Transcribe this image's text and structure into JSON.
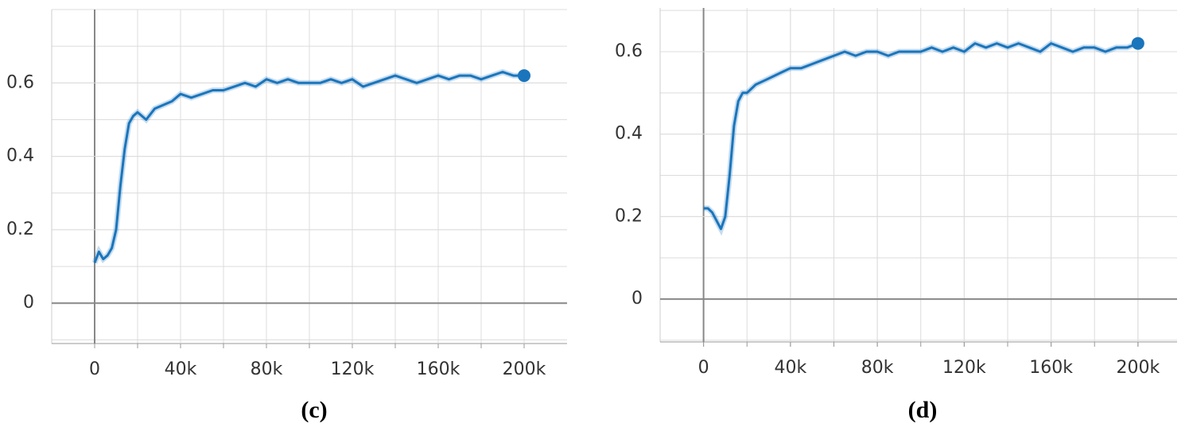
{
  "chart_data": [
    {
      "type": "line",
      "title": "(c)",
      "x": [
        0,
        2000,
        4000,
        6000,
        8000,
        10000,
        12000,
        14000,
        16000,
        18000,
        20000,
        24000,
        28000,
        32000,
        36000,
        40000,
        45000,
        50000,
        55000,
        60000,
        65000,
        70000,
        75000,
        80000,
        85000,
        90000,
        95000,
        100000,
        105000,
        110000,
        115000,
        120000,
        125000,
        130000,
        135000,
        140000,
        145000,
        150000,
        155000,
        160000,
        165000,
        170000,
        175000,
        180000,
        185000,
        190000,
        195000,
        200000
      ],
      "series": [
        {
          "color": "#1a75bc",
          "values": [
            0.11,
            0.14,
            0.12,
            0.13,
            0.15,
            0.2,
            0.32,
            0.42,
            0.49,
            0.51,
            0.52,
            0.5,
            0.53,
            0.54,
            0.55,
            0.57,
            0.56,
            0.57,
            0.58,
            0.58,
            0.59,
            0.6,
            0.59,
            0.61,
            0.6,
            0.61,
            0.6,
            0.6,
            0.6,
            0.61,
            0.6,
            0.61,
            0.59,
            0.6,
            0.61,
            0.62,
            0.61,
            0.6,
            0.61,
            0.62,
            0.61,
            0.62,
            0.62,
            0.61,
            0.62,
            0.63,
            0.62,
            0.62
          ]
        }
      ],
      "xlim": [
        -20000,
        220000
      ],
      "ylim": [
        -0.11,
        0.8
      ],
      "xticks": [
        0,
        {
          "value": 40000,
          "label": "40k"
        },
        {
          "value": 80000,
          "label": "80k"
        },
        {
          "value": 120000,
          "label": "120k"
        },
        {
          "value": 160000,
          "label": "160k"
        },
        {
          "value": 200000,
          "label": "200k"
        }
      ],
      "yticks": [
        0,
        0.2,
        0.4,
        0.6
      ],
      "grid": true
    },
    {
      "type": "line",
      "title": "(d)",
      "x": [
        0,
        2000,
        4000,
        6000,
        8000,
        10000,
        12000,
        14000,
        16000,
        18000,
        20000,
        24000,
        28000,
        32000,
        36000,
        40000,
        45000,
        50000,
        55000,
        60000,
        65000,
        70000,
        75000,
        80000,
        85000,
        90000,
        95000,
        100000,
        105000,
        110000,
        115000,
        120000,
        125000,
        130000,
        135000,
        140000,
        145000,
        150000,
        155000,
        160000,
        165000,
        170000,
        175000,
        180000,
        185000,
        190000,
        195000,
        200000
      ],
      "series": [
        {
          "color": "#1a75bc",
          "values": [
            0.22,
            0.22,
            0.21,
            0.19,
            0.17,
            0.2,
            0.3,
            0.42,
            0.48,
            0.5,
            0.5,
            0.52,
            0.53,
            0.54,
            0.55,
            0.56,
            0.56,
            0.57,
            0.58,
            0.59,
            0.6,
            0.59,
            0.6,
            0.6,
            0.59,
            0.6,
            0.6,
            0.6,
            0.61,
            0.6,
            0.61,
            0.6,
            0.62,
            0.61,
            0.62,
            0.61,
            0.62,
            0.61,
            0.6,
            0.62,
            0.61,
            0.6,
            0.61,
            0.61,
            0.6,
            0.61,
            0.61,
            0.62
          ]
        }
      ],
      "xlim": [
        -20000,
        218000
      ],
      "ylim": [
        -0.104,
        0.706
      ],
      "xticks": [
        0,
        {
          "value": 40000,
          "label": "40k"
        },
        {
          "value": 80000,
          "label": "80k"
        },
        {
          "value": 120000,
          "label": "120k"
        },
        {
          "value": 160000,
          "label": "160k"
        },
        {
          "value": 200000,
          "label": "200k"
        }
      ],
      "yticks": [
        0,
        0.2,
        0.4,
        0.6
      ],
      "grid": true
    }
  ]
}
